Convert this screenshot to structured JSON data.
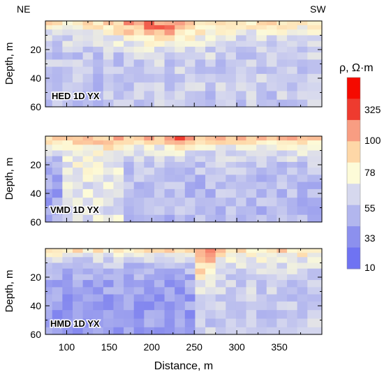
{
  "figure": {
    "direction_left": "NE",
    "direction_right": "SW",
    "xlabel": "Distance, m",
    "ylabel": "Depth, m",
    "colorbar_title": "ρ, Ω·m"
  },
  "chart_data": {
    "type": "heatmap",
    "x_range": [
      75,
      400
    ],
    "x_ticks": [
      100,
      150,
      200,
      250,
      300,
      350
    ],
    "y_range": [
      0,
      60
    ],
    "y_ticks": [
      20,
      40,
      60
    ],
    "y_inverted": true,
    "x": [
      77,
      89,
      101,
      113,
      125,
      137,
      149,
      161,
      173,
      185,
      197,
      209,
      221,
      233,
      245,
      257,
      269,
      281,
      293,
      305,
      317,
      329,
      341,
      353,
      365,
      377,
      389
    ],
    "depth": [
      0,
      3,
      6,
      10,
      14,
      18,
      22,
      27,
      32,
      37,
      43,
      49,
      55,
      60
    ],
    "colorbar": {
      "ticks": [
        10,
        33,
        55,
        78,
        100,
        325
      ],
      "colors": [
        "#6f73f2",
        "#8c90ee",
        "#b2b6ee",
        "#d6d8ee",
        "#fdfbd8",
        "#fed7a7",
        "#f89d82",
        "#ee3b2f"
      ],
      "top_color": "#f50a00"
    },
    "panels": [
      {
        "label": "HED 1D YX",
        "surface": 180,
        "anomaly": {
          "x": 205,
          "width": 45,
          "depth": 14,
          "value": 400
        },
        "deep": [
          {
            "x_max": 175,
            "value": 40
          },
          {
            "x_max": 400,
            "value": 45
          }
        ]
      },
      {
        "label": "VMD 1D YX",
        "surface": 300,
        "anomaly": {
          "x": 230,
          "width": 12,
          "depth": 12,
          "value": 450
        },
        "deep": [
          {
            "x_max": 100,
            "value": 25
          },
          {
            "x_max": 170,
            "value": 70
          },
          {
            "x_max": 400,
            "value": 35
          }
        ]
      },
      {
        "label": "HMD 1D YX",
        "surface": 200,
        "anomaly": {
          "x": 263,
          "width": 10,
          "depth": 22,
          "value": 500
        },
        "deep": [
          {
            "x_max": 250,
            "value": 22
          },
          {
            "x_max": 400,
            "value": 45
          }
        ]
      }
    ]
  }
}
